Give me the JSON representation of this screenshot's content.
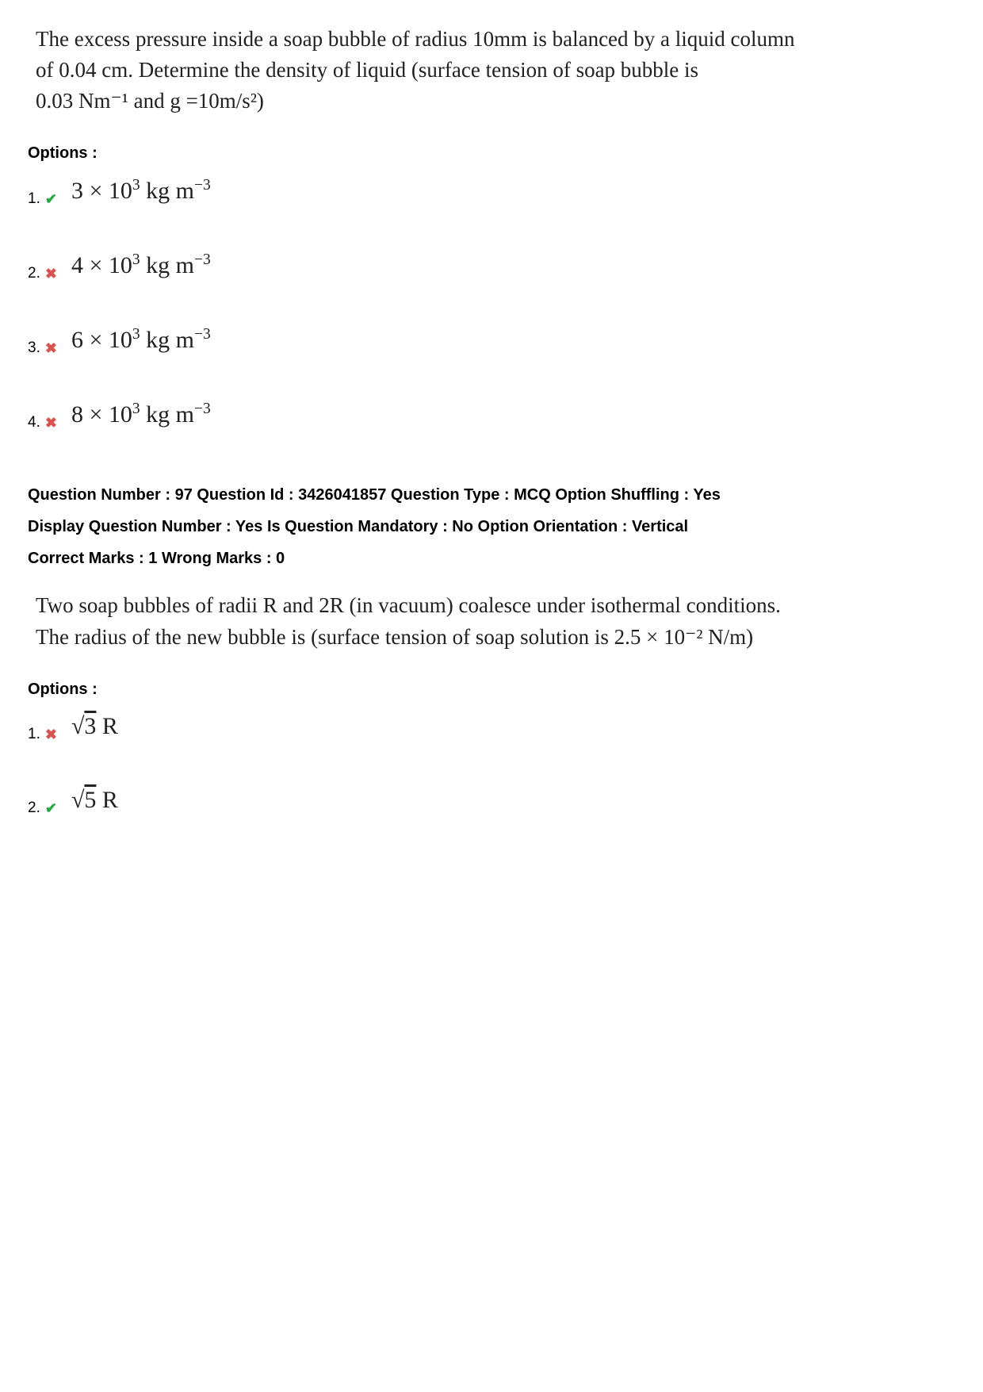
{
  "q1": {
    "text_lines": [
      "The excess pressure inside a soap bubble of radius 10mm is balanced by a liquid column",
      "of  0.04 cm. Determine the density of liquid (surface tension of soap bubble is",
      "0.03  Nm⁻¹ and g =10m/s²)"
    ],
    "options_label": "Options :",
    "options": [
      {
        "num": "1.",
        "correct": true,
        "value_html": "3 × 10<sup>3</sup> kg m<sup>−3</sup>"
      },
      {
        "num": "2.",
        "correct": false,
        "value_html": "4 × 10<sup>3</sup> kg m<sup>−3</sup>"
      },
      {
        "num": "3.",
        "correct": false,
        "value_html": "6 × 10<sup>3</sup> kg m<sup>−3</sup>"
      },
      {
        "num": "4.",
        "correct": false,
        "value_html": "8 × 10<sup>3</sup> kg m<sup>−3</sup>"
      }
    ]
  },
  "meta": {
    "line1": "Question Number : 97 Question Id : 3426041857 Question Type : MCQ Option Shuffling : Yes",
    "line2": "Display Question Number : Yes Is Question Mandatory : No Option Orientation : Vertical",
    "line3": "Correct Marks : 1 Wrong Marks : 0"
  },
  "q2": {
    "text_lines": [
      "Two soap bubbles of radii R and 2R (in vacuum) coalesce under isothermal conditions.",
      "The radius of the new bubble is (surface tension of soap solution is 2.5 × 10⁻² N/m)"
    ],
    "options_label": "Options :",
    "options": [
      {
        "num": "1.",
        "correct": false,
        "value_html": "√<span class=\"sqrt\">3</span> R"
      },
      {
        "num": "2.",
        "correct": true,
        "value_html": "√<span class=\"sqrt\">5</span> R"
      }
    ]
  },
  "colors": {
    "correct": "#27a844",
    "wrong": "#d9534f",
    "text": "#212121",
    "bg": "#ffffff"
  }
}
